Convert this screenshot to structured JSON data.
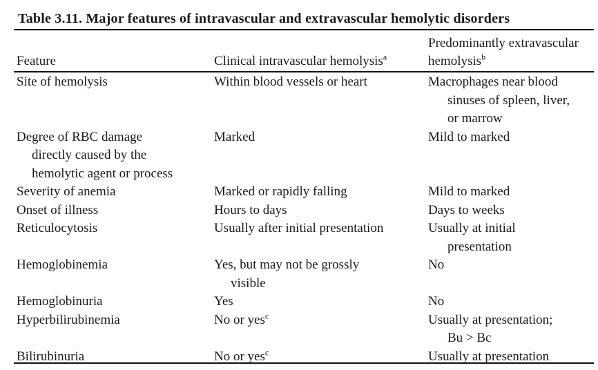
{
  "table": {
    "title": "Table 3.11. Major features of intravascular and extravascular hemolytic disorders",
    "header": {
      "feature": "Feature",
      "intravascular": {
        "text": "Clinical intravascular hemolysis",
        "sup": "a"
      },
      "extravascular": {
        "line1": "Predominantly extravascular",
        "line2": "hemolysis",
        "sup": "b"
      }
    },
    "rows": [
      {
        "feature": {
          "lines": [
            "Site of hemolysis"
          ]
        },
        "intravascular": {
          "lines": [
            "Within blood vessels or heart"
          ]
        },
        "extravascular": {
          "lines": [
            "Macrophages near blood",
            "sinuses of spleen, liver,",
            "or marrow"
          ]
        }
      },
      {
        "feature": {
          "lines": [
            "Degree of RBC damage",
            "directly caused by the",
            "hemolytic agent or process"
          ]
        },
        "intravascular": {
          "lines": [
            "Marked"
          ]
        },
        "extravascular": {
          "lines": [
            "Mild to marked"
          ]
        }
      },
      {
        "feature": {
          "lines": [
            "Severity of anemia"
          ]
        },
        "intravascular": {
          "lines": [
            "Marked or rapidly falling"
          ]
        },
        "extravascular": {
          "lines": [
            "Mild to marked"
          ]
        }
      },
      {
        "feature": {
          "lines": [
            "Onset of illness"
          ]
        },
        "intravascular": {
          "lines": [
            "Hours to days"
          ]
        },
        "extravascular": {
          "lines": [
            "Days to weeks"
          ]
        }
      },
      {
        "feature": {
          "lines": [
            "Reticulocytosis"
          ]
        },
        "intravascular": {
          "lines": [
            "Usually after initial presentation"
          ]
        },
        "extravascular": {
          "lines": [
            "Usually at initial",
            "presentation"
          ]
        }
      },
      {
        "feature": {
          "lines": [
            "Hemoglobinemia"
          ]
        },
        "intravascular": {
          "lines": [
            "Yes, but may not be grossly",
            "visible"
          ]
        },
        "extravascular": {
          "lines": [
            "No"
          ]
        }
      },
      {
        "feature": {
          "lines": [
            "Hemoglobinuria"
          ]
        },
        "intravascular": {
          "lines": [
            "Yes"
          ]
        },
        "extravascular": {
          "lines": [
            "No"
          ]
        }
      },
      {
        "feature": {
          "lines": [
            "Hyperbilirubinemia"
          ]
        },
        "intravascular": {
          "lines": [
            "No or yes"
          ],
          "sup": "c"
        },
        "extravascular": {
          "lines": [
            "Usually at presentation;",
            "Bu > Bc"
          ]
        }
      },
      {
        "feature": {
          "lines": [
            "Bilirubinuria"
          ]
        },
        "intravascular": {
          "lines": [
            "No or yes"
          ],
          "sup": "c"
        },
        "extravascular": {
          "lines": [
            "Usually at presentation"
          ]
        }
      }
    ]
  }
}
